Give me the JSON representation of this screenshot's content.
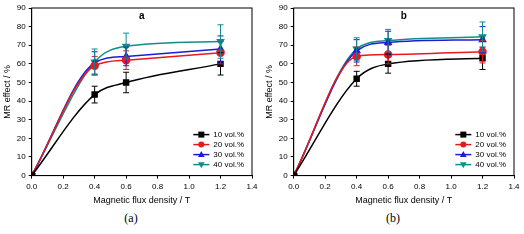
{
  "chart_data": [
    {
      "type": "line",
      "title": "a",
      "caption": "(a)",
      "x_label": "Magnetic flux density / T",
      "y_label": "MR effect / %",
      "x": [
        0,
        0.4,
        0.6,
        1.2
      ],
      "series": [
        {
          "name": "10 vol.%",
          "color": "#000000",
          "marker": "square",
          "values": [
            0,
            43.5,
            50,
            60
          ],
          "errors": [
            0,
            4.5,
            5.5,
            6
          ]
        },
        {
          "name": "20 vol.%",
          "color": "#e8191b",
          "marker": "circle",
          "values": [
            0,
            59,
            62,
            66
          ],
          "errors": [
            0,
            5,
            5,
            6
          ]
        },
        {
          "name": "30 vol.%",
          "color": "#1c1cd6",
          "marker": "triangle",
          "values": [
            0,
            60.5,
            64,
            68
          ],
          "errors": [
            0,
            6,
            5,
            7
          ]
        },
        {
          "name": "40 vol.%",
          "color": "#138c8c",
          "marker": "triangle-down",
          "values": [
            0,
            61,
            69.5,
            72
          ],
          "errors": [
            0,
            7,
            7,
            9
          ]
        }
      ],
      "xlim": [
        0,
        1.4
      ],
      "xticks": [
        {
          "value": 0,
          "label": "0.0"
        },
        {
          "value": 0.2,
          "label": "0.2"
        },
        {
          "value": 0.4,
          "label": "0.4"
        },
        {
          "value": 0.6,
          "label": "0.6"
        },
        {
          "value": 0.8,
          "label": "0.8"
        },
        {
          "value": 1.0,
          "label": "1.0"
        },
        {
          "value": 1.2,
          "label": "1.2"
        },
        {
          "value": 1.4,
          "label": "1.4"
        }
      ],
      "ylim": [
        0,
        90
      ],
      "yticks": [
        0,
        10,
        20,
        30,
        40,
        50,
        60,
        70,
        80,
        90
      ],
      "grid": false,
      "legend": "lower right"
    },
    {
      "type": "line",
      "title": "b",
      "caption": "(b)",
      "x_label": "Magnetic flux density / T",
      "y_label": "MR effect / %",
      "x": [
        0,
        0.4,
        0.6,
        1.2
      ],
      "series": [
        {
          "name": "10 vol.%",
          "color": "#000000",
          "marker": "square",
          "values": [
            0,
            52,
            60,
            63
          ],
          "errors": [
            0,
            4,
            5,
            6
          ]
        },
        {
          "name": "20 vol.%",
          "color": "#e8191b",
          "marker": "circle",
          "values": [
            0,
            64,
            65,
            66.5
          ],
          "errors": [
            0,
            5,
            5,
            6
          ]
        },
        {
          "name": "30 vol.%",
          "color": "#1c1cd6",
          "marker": "triangle",
          "values": [
            0,
            67,
            71.5,
            73
          ],
          "errors": [
            0,
            6,
            6,
            7
          ]
        },
        {
          "name": "40 vol.%",
          "color": "#138c8c",
          "marker": "triangle-down",
          "values": [
            0,
            68,
            72.5,
            74.5
          ],
          "errors": [
            0,
            6,
            6,
            8
          ]
        }
      ],
      "xlim": [
        0,
        1.4
      ],
      "xticks": [
        {
          "value": 0,
          "label": "0.0"
        },
        {
          "value": 0.2,
          "label": "0.2"
        },
        {
          "value": 0.4,
          "label": "0.4"
        },
        {
          "value": 0.6,
          "label": "0.6"
        },
        {
          "value": 0.8,
          "label": "0.8"
        },
        {
          "value": 1.0,
          "label": "1.0"
        },
        {
          "value": 1.2,
          "label": "1.2"
        },
        {
          "value": 1.4,
          "label": "1.4"
        }
      ],
      "ylim": [
        0,
        90
      ],
      "yticks": [
        0,
        10,
        20,
        30,
        40,
        50,
        60,
        70,
        80,
        90
      ],
      "grid": false,
      "legend": "lower right"
    }
  ]
}
